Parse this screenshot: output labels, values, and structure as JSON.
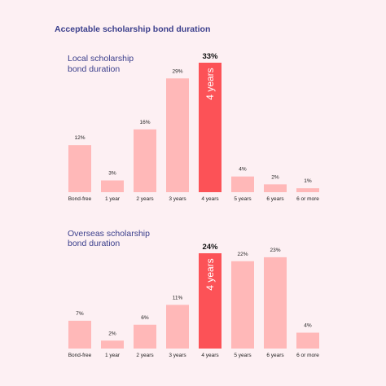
{
  "title": "Acceptable scholarship bond duration",
  "colors": {
    "bar": "#ffb8b8",
    "highlight": "#fc5257",
    "heading": "#3b3f8c",
    "background": "#fdf0f3"
  },
  "chart_data": [
    {
      "type": "bar",
      "title_lines": [
        "Local scholarship",
        "bond duration"
      ],
      "categories": [
        "Bond-free",
        "1 year",
        "2 years",
        "3 years",
        "4 years",
        "5 years",
        "6 years",
        "6 or more"
      ],
      "values": [
        12,
        3,
        16,
        29,
        33,
        4,
        2,
        1
      ],
      "value_labels": [
        "12%",
        "3%",
        "16%",
        "29%",
        "33%",
        "4%",
        "2%",
        "1%"
      ],
      "highlight_index": 4,
      "highlight_label": "4 years",
      "ylim": [
        0,
        33
      ]
    },
    {
      "type": "bar",
      "title_lines": [
        "Overseas scholarship",
        "bond duration"
      ],
      "categories": [
        "Bond-free",
        "1 year",
        "2 years",
        "3 years",
        "4 years",
        "5 years",
        "6 years",
        "6 or more"
      ],
      "values": [
        7,
        2,
        6,
        11,
        24,
        22,
        23,
        4
      ],
      "value_labels": [
        "7%",
        "2%",
        "6%",
        "11%",
        "24%",
        "22%",
        "23%",
        "4%"
      ],
      "highlight_index": 4,
      "highlight_label": "4 years",
      "ylim": [
        0,
        24
      ]
    }
  ]
}
